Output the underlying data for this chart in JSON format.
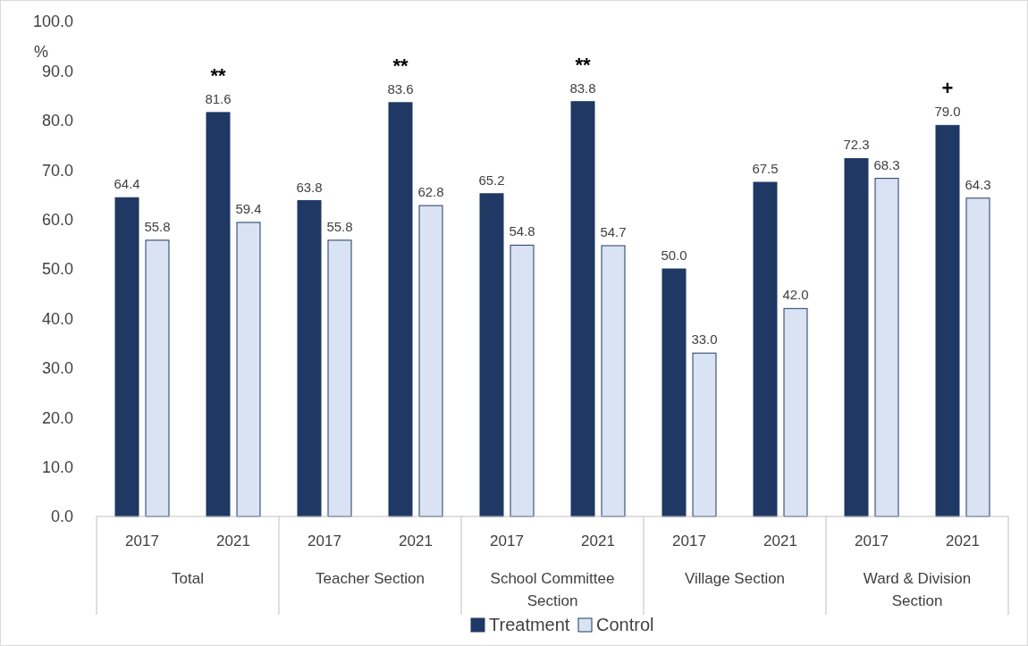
{
  "chart_data": {
    "type": "bar",
    "ylabel": "%",
    "categories": [
      "2017",
      "2021",
      "2017",
      "2021",
      "2017",
      "2021",
      "2017",
      "2021",
      "2017",
      "2021"
    ],
    "series": [
      {
        "name": "Treatment",
        "color": "#1f3864",
        "values": [
          64.4,
          81.6,
          63.8,
          83.6,
          65.2,
          83.8,
          50.0,
          67.5,
          72.3,
          79.0
        ],
        "value_labels": [
          "64.4",
          "81.6",
          "63.8",
          "83.6",
          "65.2",
          "83.8",
          "50.0",
          "67.5",
          "72.3",
          "79.0"
        ]
      },
      {
        "name": "Control",
        "color": "#dae3f3",
        "values": [
          55.8,
          59.4,
          55.8,
          62.8,
          54.8,
          54.7,
          33.0,
          42.0,
          68.3,
          64.3
        ],
        "value_labels": [
          "55.8",
          "59.4",
          "55.8",
          "62.8",
          "54.8",
          "54.7",
          "33.0",
          "42.0",
          "68.3",
          "64.3"
        ]
      }
    ],
    "ylim": [
      0,
      100
    ],
    "yticks": [
      {
        "value": 0,
        "label": "0.0"
      },
      {
        "value": 10,
        "label": "10.0"
      },
      {
        "value": 20,
        "label": "20.0"
      },
      {
        "value": 30,
        "label": "30.0"
      },
      {
        "value": 40,
        "label": "40.0"
      },
      {
        "value": 50,
        "label": "50.0"
      },
      {
        "value": 60,
        "label": "60.0"
      },
      {
        "value": 70,
        "label": "70.0"
      },
      {
        "value": 80,
        "label": "80.0"
      },
      {
        "value": 90,
        "label": "90.0"
      },
      {
        "value": 100,
        "label": "100.0"
      }
    ],
    "legend": "bottom",
    "grid": false,
    "annotations": [
      "Total",
      "Teacher Section",
      "School Committee Section",
      "Village Section",
      "Ward & Division Section",
      {
        "text": "**",
        "y": 81.6
      },
      {
        "text": "**",
        "y": 83.6
      },
      {
        "text": "**",
        "y": 83.8
      },
      {
        "text": "+",
        "y": 79.0
      }
    ]
  }
}
